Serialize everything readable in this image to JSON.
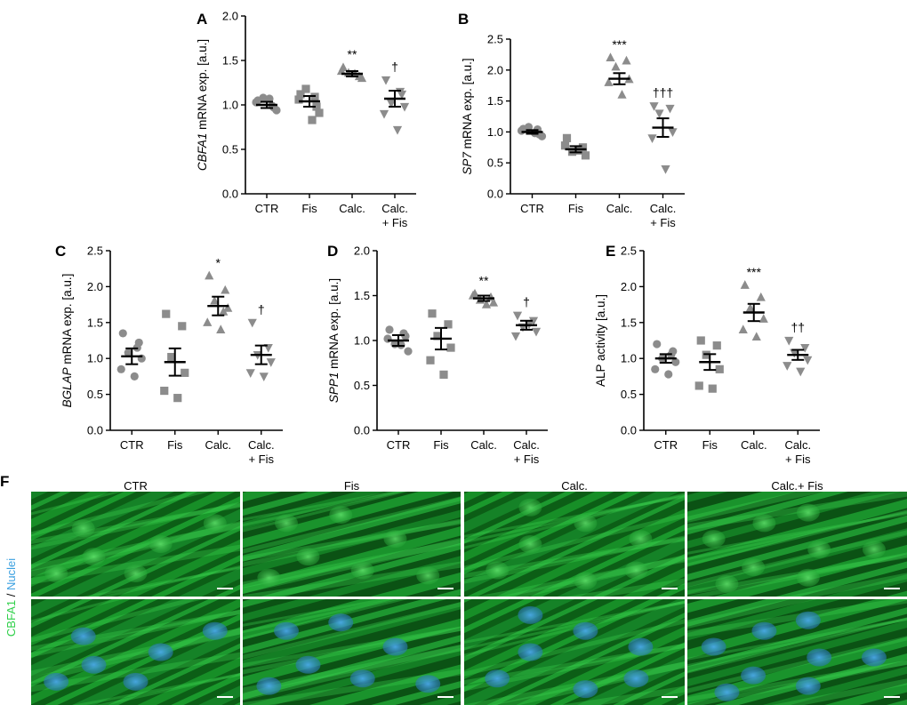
{
  "charts": [
    {
      "id": "A",
      "type": "scatter",
      "letter": "A",
      "ylabel_italic": "CBFA1",
      "ylabel_rest": " mRNA exp. [a.u.]",
      "ylim": [
        0,
        2.0
      ],
      "yticks": [
        0,
        0.5,
        1.0,
        1.5,
        2.0
      ],
      "tick_fmt": 1,
      "categories": [
        {
          "label": [
            "CTR"
          ],
          "shape": "circle",
          "mean": 1.0,
          "sem": 0.035,
          "points": [
            1.05,
            0.97,
            1.08,
            0.94,
            1.03,
            1.07,
            0.99
          ],
          "sig": ""
        },
        {
          "label": [
            "Fis"
          ],
          "shape": "square",
          "mean": 1.04,
          "sem": 0.06,
          "points": [
            1.12,
            0.98,
            1.18,
            0.91,
            1.06,
            0.83,
            1.09
          ],
          "sig": ""
        },
        {
          "label": [
            "Calc."
          ],
          "shape": "triangle",
          "mean": 1.35,
          "sem": 0.03,
          "points": [
            1.42,
            1.32,
            1.36,
            1.3,
            1.38,
            1.35
          ],
          "sig": "**"
        },
        {
          "label": [
            "Calc.",
            "+ Fis"
          ],
          "shape": "tridown",
          "mean": 1.07,
          "sem": 0.09,
          "points": [
            1.28,
            1.12,
            1.02,
            0.98,
            0.9,
            0.72,
            1.15
          ],
          "sig": "†"
        }
      ]
    },
    {
      "id": "B",
      "type": "scatter",
      "letter": "B",
      "ylabel_italic": "SP7",
      "ylabel_rest": " mRNA exp. [a.u.]",
      "ylim": [
        0,
        2.5
      ],
      "yticks": [
        0,
        0.5,
        1.0,
        1.5,
        2.0,
        2.5
      ],
      "tick_fmt": 1,
      "categories": [
        {
          "label": [
            "CTR"
          ],
          "shape": "circle",
          "mean": 1.0,
          "sem": 0.03,
          "points": [
            1.05,
            0.96,
            1.08,
            0.93,
            1.02,
            0.98,
            1.04
          ],
          "sig": ""
        },
        {
          "label": [
            "Fis"
          ],
          "shape": "square",
          "mean": 0.72,
          "sem": 0.05,
          "points": [
            0.9,
            0.75,
            0.68,
            0.62,
            0.78,
            0.7
          ],
          "sig": ""
        },
        {
          "label": [
            "Calc."
          ],
          "shape": "triangle",
          "mean": 1.86,
          "sem": 0.09,
          "points": [
            2.2,
            2.15,
            2.05,
            1.85,
            1.8,
            1.6
          ],
          "sig": "***"
        },
        {
          "label": [
            "Calc.",
            "+ Fis"
          ],
          "shape": "tridown",
          "mean": 1.07,
          "sem": 0.15,
          "points": [
            1.42,
            1.38,
            1.3,
            1.0,
            0.9,
            0.4
          ],
          "sig": "†††"
        }
      ]
    },
    {
      "id": "C",
      "type": "scatter",
      "letter": "C",
      "ylabel_italic": "BGLAP",
      "ylabel_rest": " mRNA exp. [a.u.]",
      "ylim": [
        0,
        2.5
      ],
      "yticks": [
        0,
        0.5,
        1.0,
        1.5,
        2.0,
        2.5
      ],
      "tick_fmt": 1,
      "categories": [
        {
          "label": [
            "CTR"
          ],
          "shape": "circle",
          "mean": 1.03,
          "sem": 0.11,
          "points": [
            1.35,
            1.22,
            1.08,
            1.0,
            0.85,
            0.75,
            1.15
          ],
          "sig": ""
        },
        {
          "label": [
            "Fis"
          ],
          "shape": "square",
          "mean": 0.95,
          "sem": 0.19,
          "points": [
            1.62,
            1.45,
            1.02,
            0.8,
            0.55,
            0.45
          ],
          "sig": ""
        },
        {
          "label": [
            "Calc."
          ],
          "shape": "triangle",
          "mean": 1.73,
          "sem": 0.13,
          "points": [
            2.15,
            1.95,
            1.8,
            1.7,
            1.5,
            1.4,
            1.65
          ],
          "sig": "*"
        },
        {
          "label": [
            "Calc.",
            "+ Fis"
          ],
          "shape": "tridown",
          "mean": 1.05,
          "sem": 0.13,
          "points": [
            1.5,
            1.15,
            1.05,
            0.95,
            0.8,
            0.75
          ],
          "sig": "†"
        }
      ]
    },
    {
      "id": "D",
      "type": "scatter",
      "letter": "D",
      "ylabel_italic": "SPP1",
      "ylabel_rest": " mRNA exp. [a.u.]",
      "ylim": [
        0,
        2.0
      ],
      "yticks": [
        0,
        0.5,
        1.0,
        1.5,
        2.0
      ],
      "tick_fmt": 1,
      "categories": [
        {
          "label": [
            "CTR"
          ],
          "shape": "circle",
          "mean": 1.0,
          "sem": 0.06,
          "points": [
            1.12,
            1.05,
            0.96,
            0.88,
            1.02,
            0.95,
            1.08
          ],
          "sig": ""
        },
        {
          "label": [
            "Fis"
          ],
          "shape": "square",
          "mean": 1.02,
          "sem": 0.12,
          "points": [
            1.3,
            1.18,
            1.05,
            0.92,
            0.78,
            0.62
          ],
          "sig": ""
        },
        {
          "label": [
            "Calc."
          ],
          "shape": "triangle",
          "mean": 1.47,
          "sem": 0.03,
          "points": [
            1.52,
            1.48,
            1.45,
            1.42,
            1.5,
            1.4
          ],
          "sig": "**"
        },
        {
          "label": [
            "Calc.",
            "+ Fis"
          ],
          "shape": "tridown",
          "mean": 1.17,
          "sem": 0.05,
          "points": [
            1.28,
            1.22,
            1.15,
            1.1,
            1.05,
            1.18
          ],
          "sig": "†"
        }
      ]
    },
    {
      "id": "E",
      "type": "scatter",
      "letter": "E",
      "ylabel_italic": "",
      "ylabel_rest": "ALP activity [a.u.]",
      "ylim": [
        0,
        2.5
      ],
      "yticks": [
        0,
        0.5,
        1.0,
        1.5,
        2.0,
        2.5
      ],
      "tick_fmt": 1,
      "categories": [
        {
          "label": [
            "CTR"
          ],
          "shape": "circle",
          "mean": 1.0,
          "sem": 0.06,
          "points": [
            1.2,
            1.1,
            1.0,
            0.95,
            0.85,
            0.78,
            1.05
          ],
          "sig": ""
        },
        {
          "label": [
            "Fis"
          ],
          "shape": "square",
          "mean": 0.95,
          "sem": 0.11,
          "points": [
            1.25,
            1.18,
            1.05,
            0.85,
            0.62,
            0.58
          ],
          "sig": ""
        },
        {
          "label": [
            "Calc."
          ],
          "shape": "triangle",
          "mean": 1.64,
          "sem": 0.12,
          "points": [
            2.02,
            1.85,
            1.7,
            1.55,
            1.4,
            1.3
          ],
          "sig": "***"
        },
        {
          "label": [
            "Calc.",
            "+ Fis"
          ],
          "shape": "tridown",
          "mean": 1.05,
          "sem": 0.07,
          "points": [
            1.25,
            1.15,
            1.08,
            0.98,
            0.9,
            0.82
          ],
          "sig": "††"
        }
      ]
    }
  ],
  "chart_data": [
    {
      "type": "scatter",
      "panel": "A",
      "ylabel": "CBFA1 mRNA exp. [a.u.]",
      "categories": [
        "CTR",
        "Fis",
        "Calc.",
        "Calc. + Fis"
      ],
      "ylim": [
        0,
        2.0
      ],
      "means": [
        1.0,
        1.04,
        1.35,
        1.07
      ],
      "annotations": [
        "",
        "",
        "**",
        "†"
      ]
    },
    {
      "type": "scatter",
      "panel": "B",
      "ylabel": "SP7 mRNA exp. [a.u.]",
      "categories": [
        "CTR",
        "Fis",
        "Calc.",
        "Calc. + Fis"
      ],
      "ylim": [
        0,
        2.5
      ],
      "means": [
        1.0,
        0.72,
        1.86,
        1.07
      ],
      "annotations": [
        "",
        "",
        "***",
        "†††"
      ]
    },
    {
      "type": "scatter",
      "panel": "C",
      "ylabel": "BGLAP mRNA exp. [a.u.]",
      "categories": [
        "CTR",
        "Fis",
        "Calc.",
        "Calc. + Fis"
      ],
      "ylim": [
        0,
        2.5
      ],
      "means": [
        1.03,
        0.95,
        1.73,
        1.05
      ],
      "annotations": [
        "",
        "",
        "*",
        "†"
      ]
    },
    {
      "type": "scatter",
      "panel": "D",
      "ylabel": "SPP1 mRNA exp. [a.u.]",
      "categories": [
        "CTR",
        "Fis",
        "Calc.",
        "Calc. + Fis"
      ],
      "ylim": [
        0,
        2.0
      ],
      "means": [
        1.0,
        1.02,
        1.47,
        1.17
      ],
      "annotations": [
        "",
        "",
        "**",
        "†"
      ]
    },
    {
      "type": "scatter",
      "panel": "E",
      "ylabel": "ALP activity [a.u.]",
      "categories": [
        "CTR",
        "Fis",
        "Calc.",
        "Calc. + Fis"
      ],
      "ylim": [
        0,
        2.5
      ],
      "means": [
        1.0,
        0.95,
        1.64,
        1.05
      ],
      "annotations": [
        "",
        "",
        "***",
        "††"
      ]
    }
  ],
  "micrographs": {
    "letter": "F",
    "column_titles": [
      "CTR",
      "Fis",
      "Calc.",
      "Calc.+ Fis"
    ],
    "side_label_green": "CBFA1",
    "side_label_sep": " / ",
    "side_label_blue": "Nuclei",
    "green_color": "#2fd04a",
    "blue_color": "#3aa0e0",
    "columns": [
      {
        "nuclei": [
          [
            0.25,
            0.35
          ],
          [
            0.62,
            0.5
          ],
          [
            0.12,
            0.78
          ],
          [
            0.5,
            0.78
          ],
          [
            0.88,
            0.3
          ],
          [
            0.3,
            0.62
          ]
        ]
      },
      {
        "nuclei": [
          [
            0.2,
            0.3
          ],
          [
            0.45,
            0.22
          ],
          [
            0.7,
            0.45
          ],
          [
            0.3,
            0.62
          ],
          [
            0.55,
            0.75
          ],
          [
            0.85,
            0.8
          ],
          [
            0.12,
            0.82
          ]
        ]
      },
      {
        "nuclei": [
          [
            0.3,
            0.15
          ],
          [
            0.55,
            0.3
          ],
          [
            0.8,
            0.45
          ],
          [
            0.3,
            0.5
          ],
          [
            0.15,
            0.75
          ],
          [
            0.78,
            0.75
          ],
          [
            0.55,
            0.85
          ]
        ]
      },
      {
        "nuclei": [
          [
            0.35,
            0.3
          ],
          [
            0.55,
            0.2
          ],
          [
            0.12,
            0.45
          ],
          [
            0.6,
            0.55
          ],
          [
            0.85,
            0.55
          ],
          [
            0.3,
            0.72
          ],
          [
            0.55,
            0.82
          ],
          [
            0.18,
            0.88
          ]
        ]
      }
    ]
  }
}
